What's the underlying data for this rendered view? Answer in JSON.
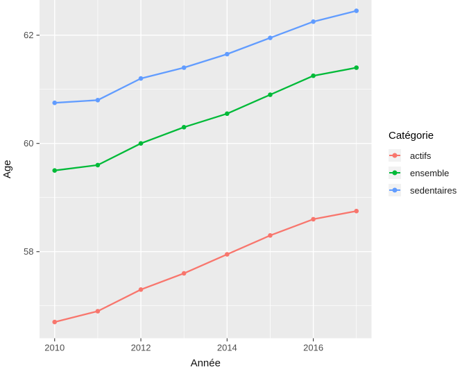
{
  "chart_data": {
    "type": "line",
    "title": "",
    "xlabel": "Année",
    "ylabel": "Age",
    "x": [
      2010,
      2011,
      2012,
      2013,
      2014,
      2015,
      2016,
      2017
    ],
    "series": [
      {
        "name": "actifs",
        "color": "#F8766D",
        "values": [
          56.7,
          56.9,
          57.3,
          57.6,
          57.95,
          58.3,
          58.6,
          58.75
        ]
      },
      {
        "name": "ensemble",
        "color": "#00BA38",
        "values": [
          59.5,
          59.6,
          60.0,
          60.3,
          60.55,
          60.9,
          61.25,
          61.4
        ]
      },
      {
        "name": "sedentaires",
        "color": "#619CFF",
        "values": [
          60.75,
          60.8,
          61.2,
          61.4,
          61.65,
          61.95,
          62.25,
          62.45
        ]
      }
    ],
    "x_ticks": [
      2010,
      2012,
      2014,
      2016
    ],
    "x_minor_ticks": [
      2011,
      2013,
      2015,
      2017
    ],
    "y_ticks": [
      58,
      60,
      62
    ],
    "y_minor_ticks": [
      57,
      59,
      61
    ],
    "x_domain": [
      2009.65,
      2017.35
    ],
    "y_domain": [
      56.4,
      62.65
    ],
    "grid": true,
    "legend_position": "right"
  },
  "legend": {
    "title": "Catégorie",
    "items": [
      {
        "label": "actifs",
        "color": "#F8766D"
      },
      {
        "label": "ensemble",
        "color": "#00BA38"
      },
      {
        "label": "sedentaires",
        "color": "#619CFF"
      }
    ]
  },
  "colors": {
    "panel_bg": "#EBEBEB",
    "grid": "#FFFFFF",
    "tick_text": "#4D4D4D",
    "axis_title_text": "#111111",
    "tick_mark": "#333333",
    "legend_key_bg": "#F2F2F2",
    "outer_bg": "#FFFFFF"
  }
}
